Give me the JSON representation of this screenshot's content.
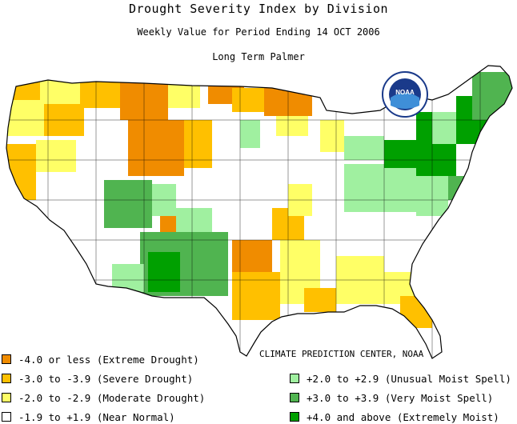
{
  "header": {
    "title": "Drought Severity Index by Division",
    "subtitle": "Weekly Value for Period Ending 14 OCT 2006",
    "index_name": "Long Term Palmer"
  },
  "logo": {
    "text": "NOAA"
  },
  "credit": "CLIMATE PREDICTION CENTER, NOAA",
  "legend": [
    {
      "label": "-4.0 or less (Extreme Drought)",
      "color": "#f08c00"
    },
    {
      "label": "-3.0 to -3.9 (Severe Drought)",
      "color": "#ffc000"
    },
    {
      "label": "-2.0 to -2.9 (Moderate Drought)",
      "color": "#ffff66"
    },
    {
      "label": "-1.9 to +1.9 (Near Normal)",
      "color": "#ffffff"
    },
    {
      "label": "+2.0 to +2.9 (Unusual Moist Spell)",
      "color": "#a0f0a0"
    },
    {
      "label": "+3.0 to +3.9 (Very Moist Spell)",
      "color": "#50b450"
    },
    {
      "label": "+4.0 and above (Extremely Moist)",
      "color": "#00a000"
    }
  ],
  "map_colors": {
    "extreme_drought": "#f08c00",
    "severe_drought": "#ffc000",
    "moderate_drought": "#ffff66",
    "near_normal": "#ffffff",
    "unusual_moist": "#a0f0a0",
    "very_moist": "#50b450",
    "extremely_moist": "#00a000",
    "outline": "#000000"
  }
}
